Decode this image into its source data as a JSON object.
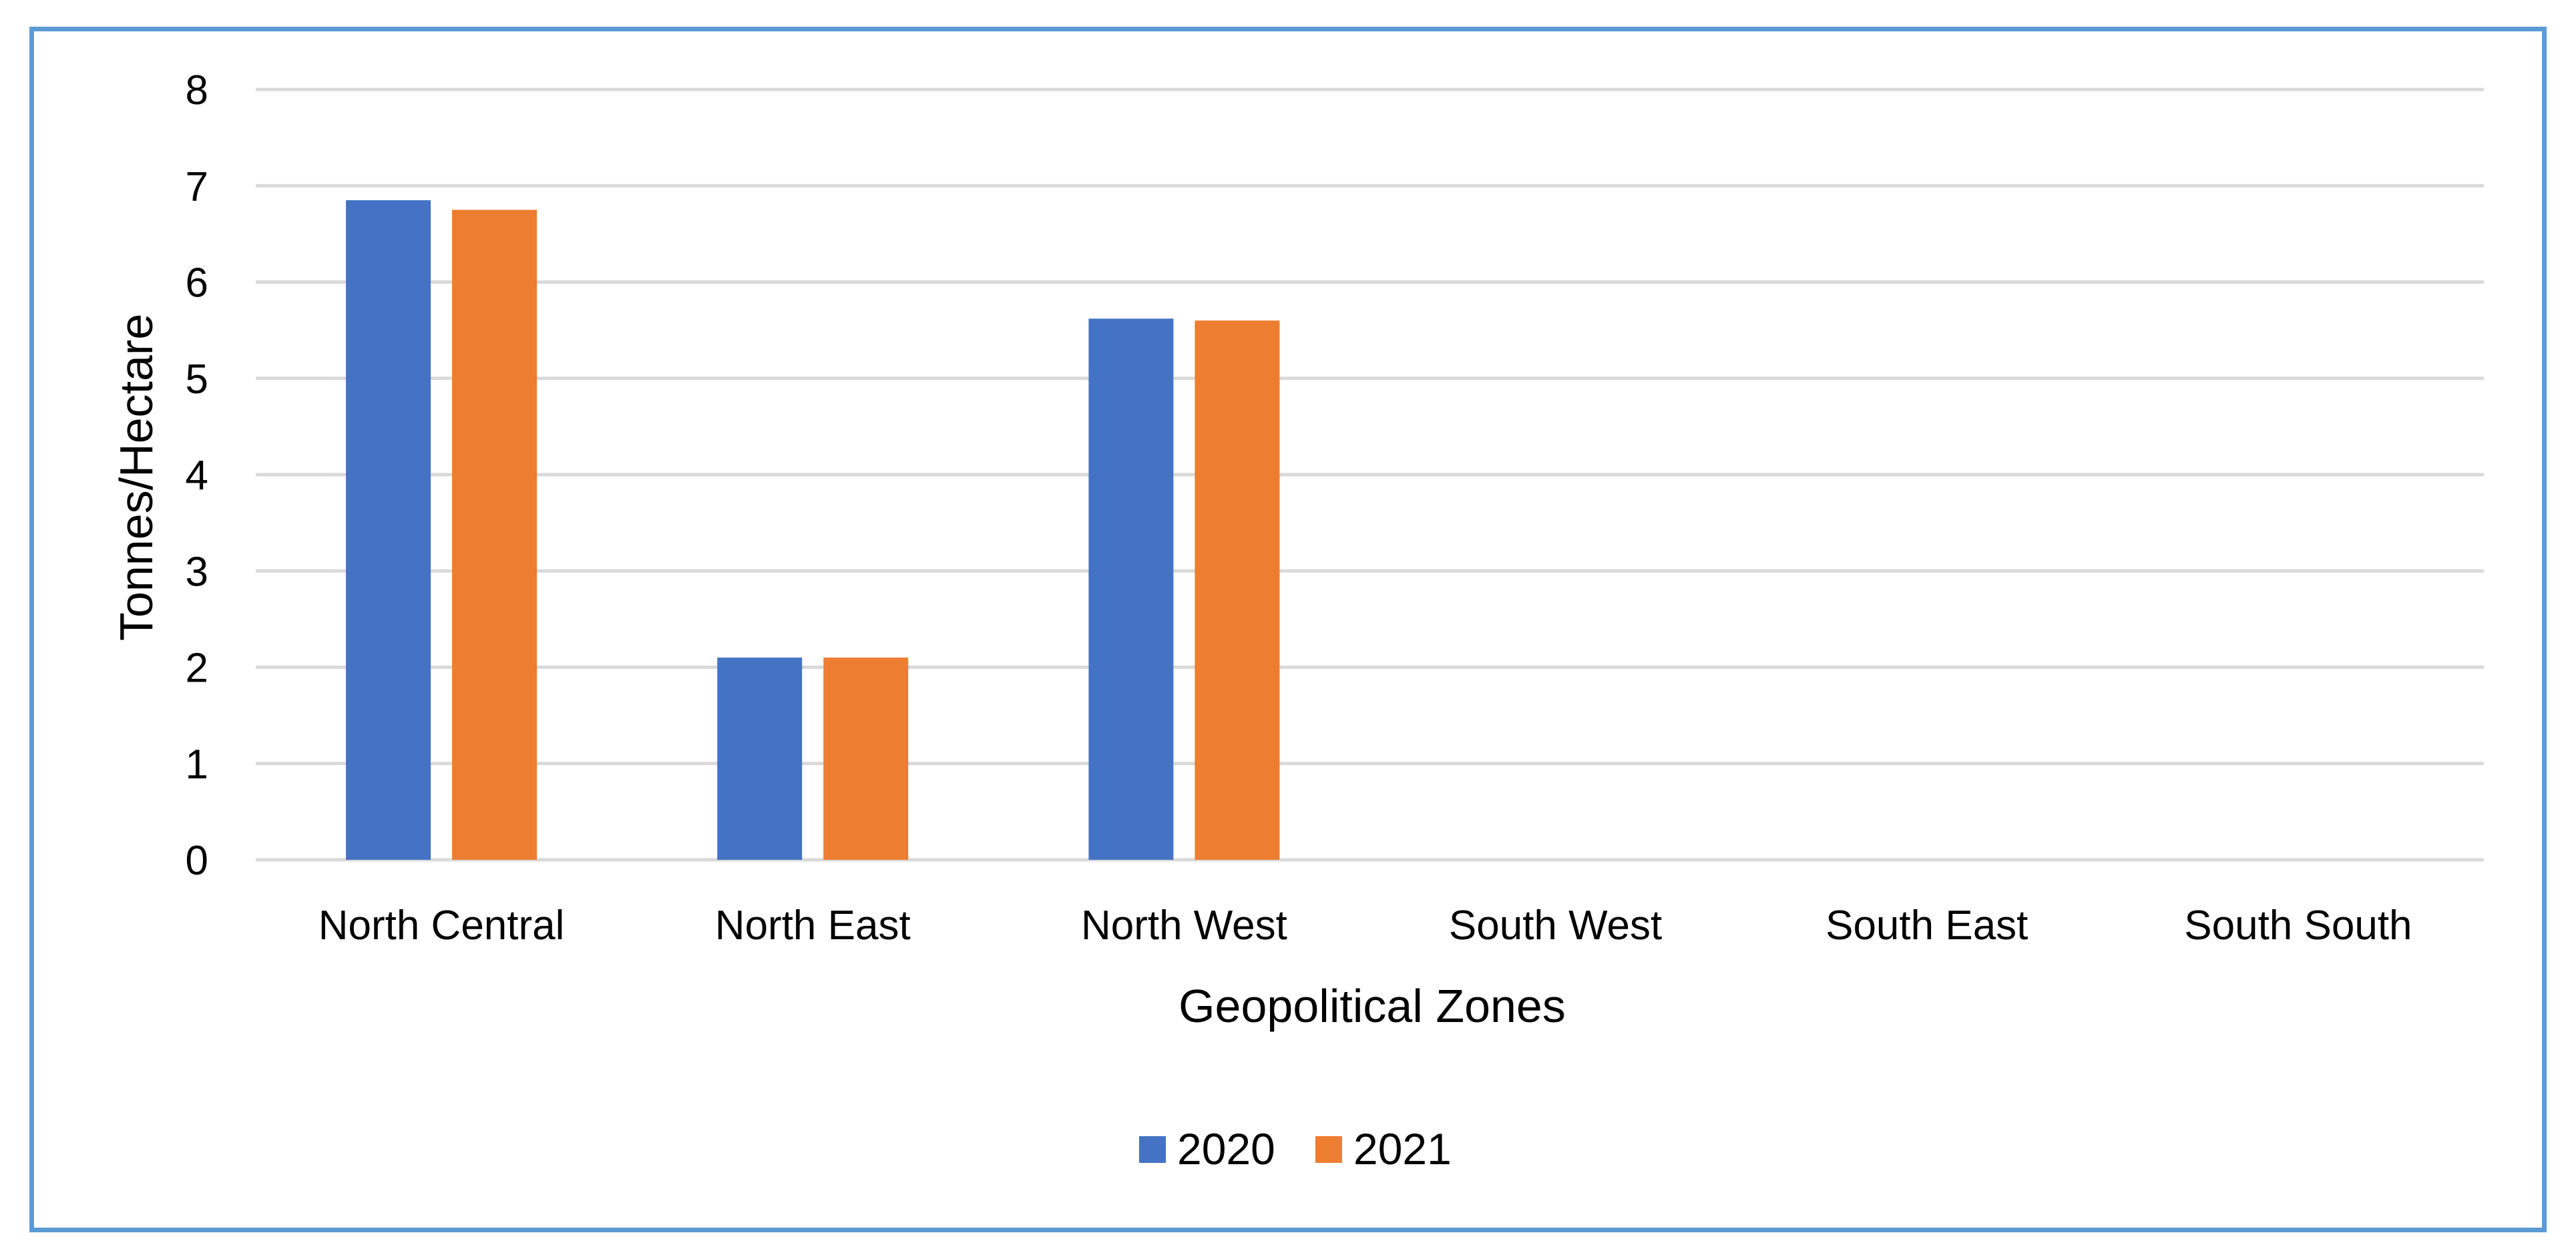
{
  "chart_data": {
    "type": "bar",
    "title": "",
    "xlabel": "Geopolitical Zones",
    "ylabel": "Tonnes/Hectare",
    "ylim": [
      0,
      8
    ],
    "yticks": [
      "0",
      "1",
      "2",
      "3",
      "4",
      "5",
      "6",
      "7",
      "8"
    ],
    "grid": true,
    "legend_position": "bottom",
    "categories": [
      "North Central",
      "North East",
      "North West",
      "South West",
      "South East",
      "South South"
    ],
    "series": [
      {
        "name": "2020",
        "color": "#4472c4",
        "values": [
          6.85,
          2.1,
          5.62,
          0,
          0,
          0
        ]
      },
      {
        "name": "2021",
        "color": "#ed7d31",
        "values": [
          6.75,
          2.1,
          5.6,
          0,
          0,
          0
        ]
      }
    ]
  }
}
